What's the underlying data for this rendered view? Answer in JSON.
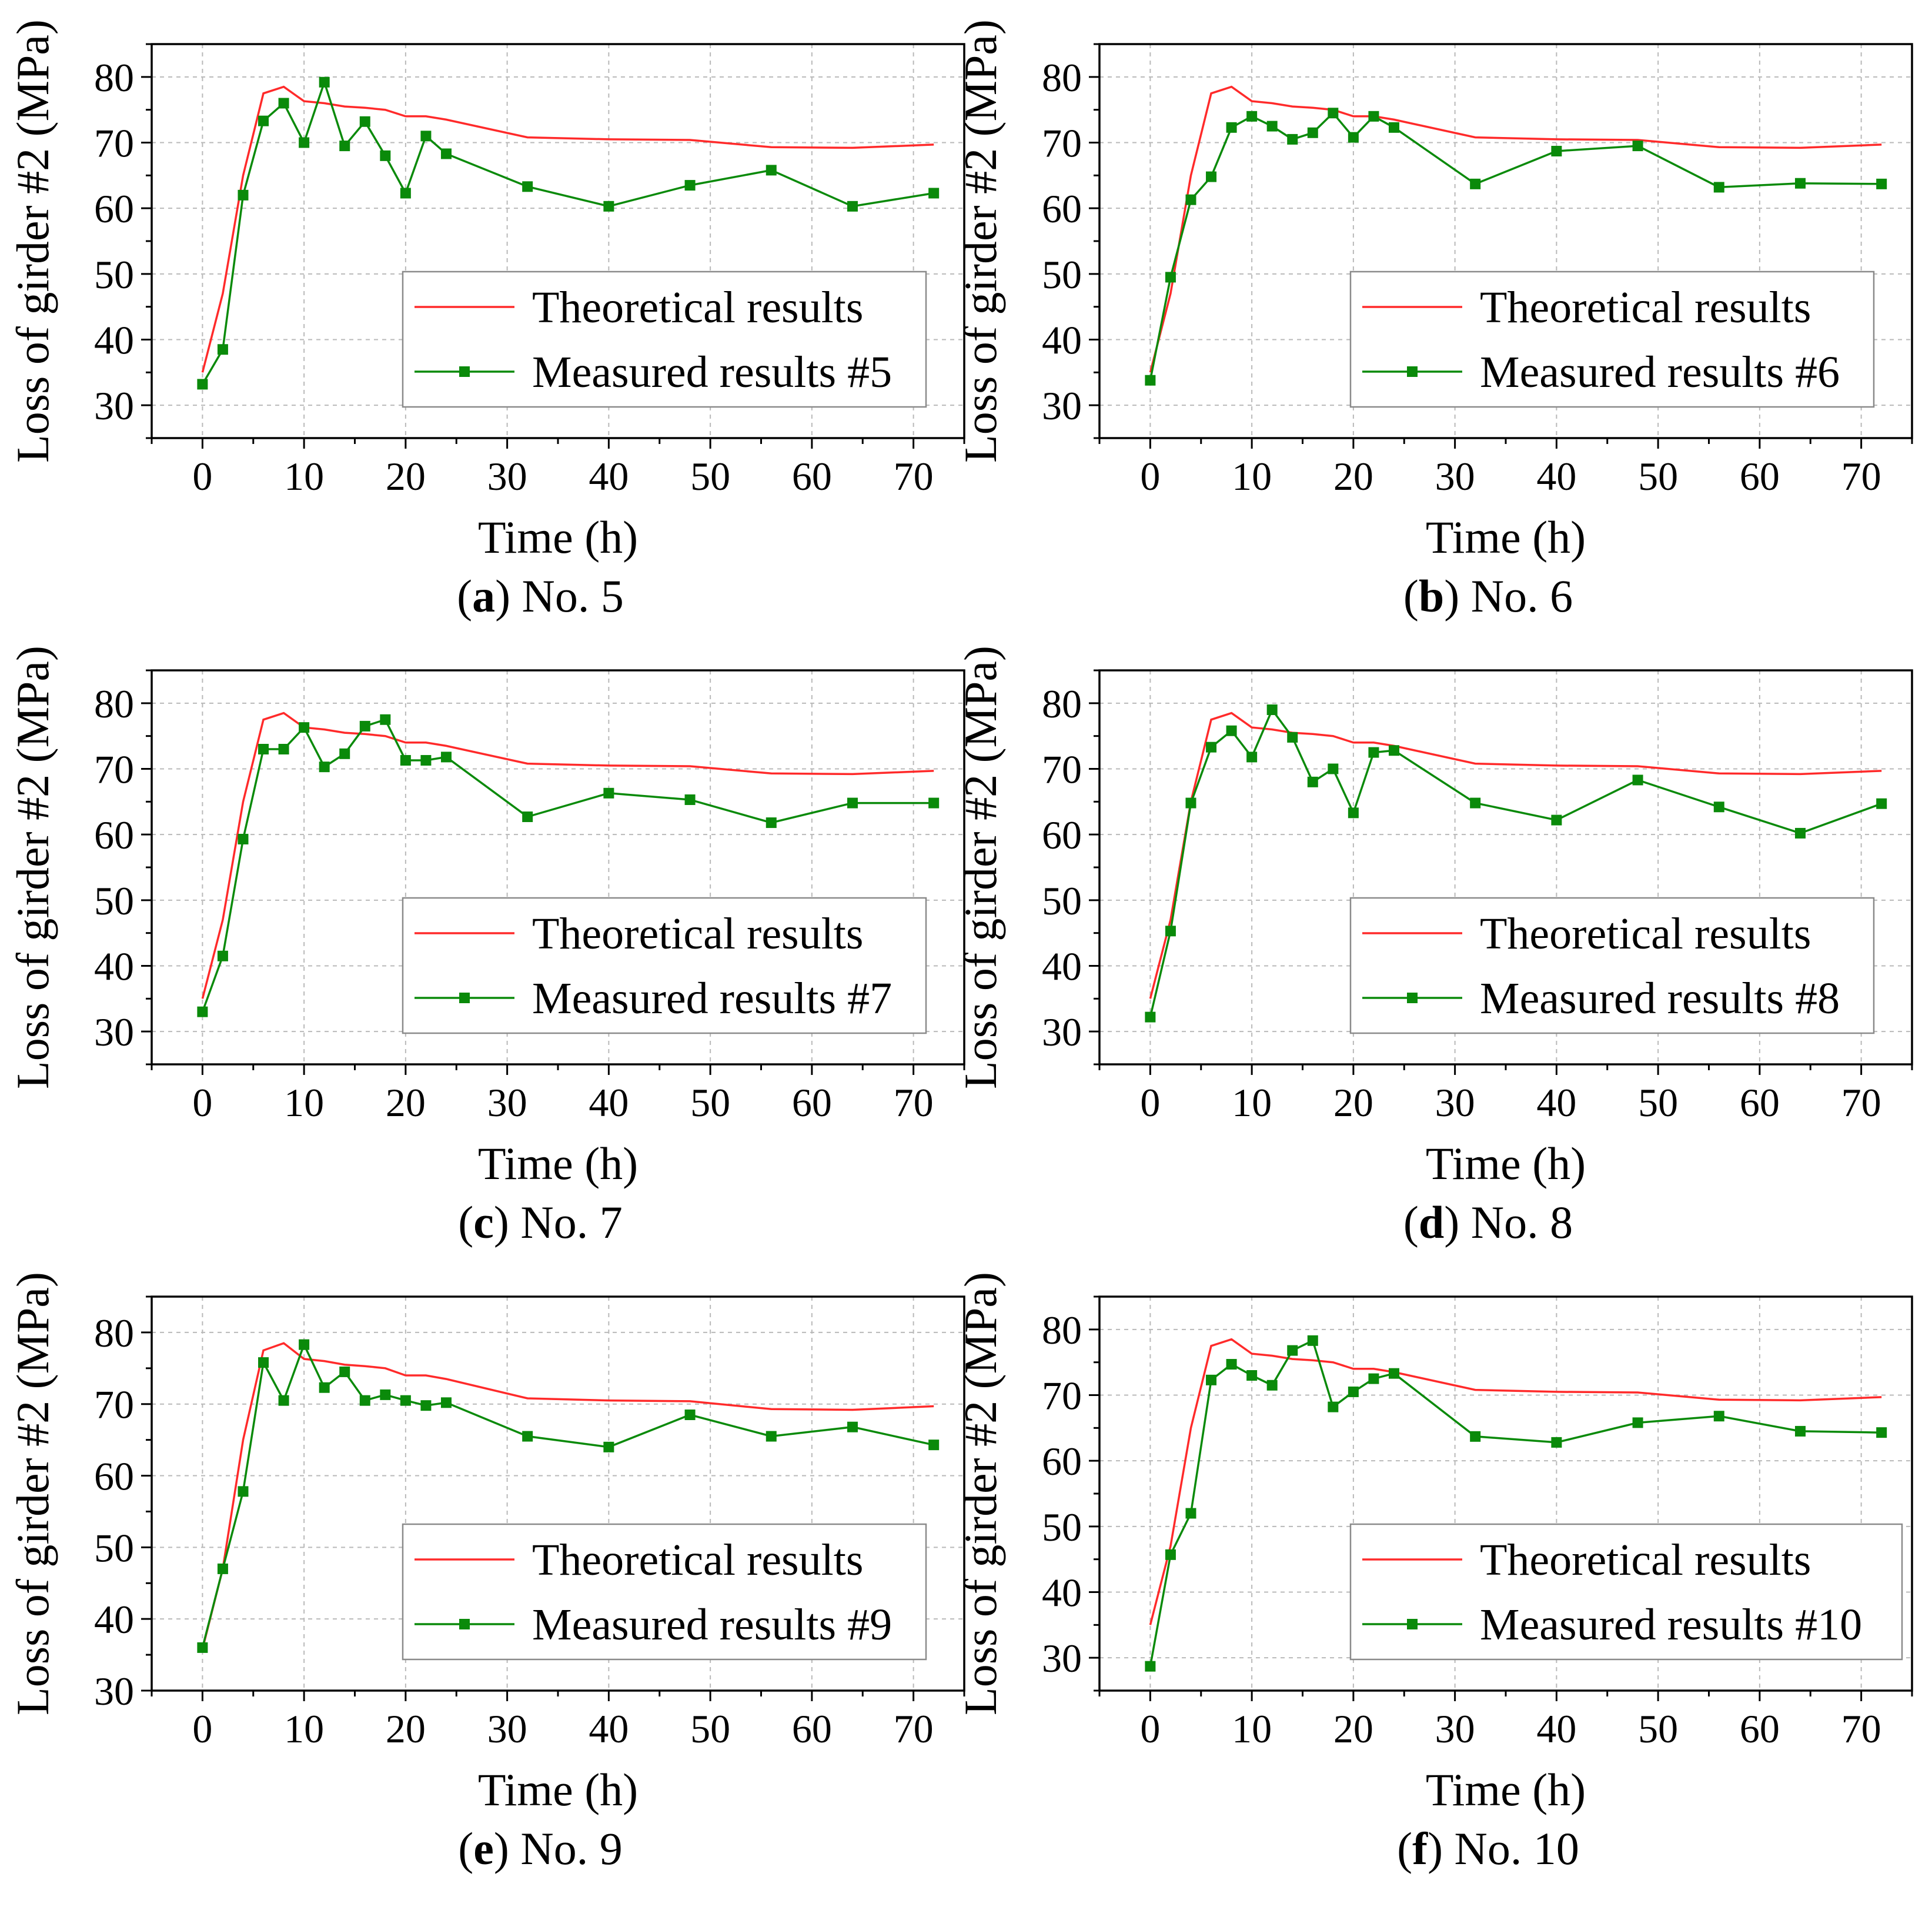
{
  "colors": {
    "theoretical": "#ff2a2a",
    "measured": "#0a8a0a",
    "grid": "#b9b9b9"
  },
  "chart_data": [
    {
      "type": "line",
      "caption_letter": "a",
      "caption_text": "No. 5",
      "xlabel": "Time (h)",
      "ylabel": "Loss of girder #2 (MPa)",
      "xlim": [
        -5,
        75
      ],
      "ylim": [
        25,
        85
      ],
      "xticks": [
        0,
        10,
        20,
        30,
        40,
        50,
        60,
        70
      ],
      "yticks": [
        30,
        40,
        50,
        60,
        70,
        80
      ],
      "grid": true,
      "legend_position": "lower-right",
      "series": [
        {
          "name": "Theoretical results",
          "marker": "none",
          "x": [
            0,
            2,
            4,
            6,
            8,
            10,
            12,
            14,
            16,
            18,
            20,
            22,
            24,
            32,
            40,
            48,
            56,
            64,
            72
          ],
          "y": [
            35,
            47,
            65,
            77.5,
            78.5,
            76.3,
            76,
            75.5,
            75.3,
            75,
            74,
            74,
            73.5,
            70.8,
            70.5,
            70.4,
            69.3,
            69.2,
            69.7
          ]
        },
        {
          "name": "Measured results #5",
          "marker": "square",
          "x": [
            0,
            2,
            4,
            6,
            8,
            10,
            12,
            14,
            16,
            18,
            20,
            22,
            24,
            32,
            40,
            48,
            56,
            64,
            72
          ],
          "y": [
            33.2,
            38.5,
            62,
            73.3,
            76,
            70,
            79.2,
            69.5,
            73.2,
            68,
            62.3,
            71,
            68.3,
            63.3,
            60.3,
            63.5,
            65.8,
            60.3,
            62.3
          ]
        }
      ]
    },
    {
      "type": "line",
      "caption_letter": "b",
      "caption_text": "No. 6",
      "xlabel": "Time (h)",
      "ylabel": "Loss of girder #2 (MPa)",
      "xlim": [
        -5,
        75
      ],
      "ylim": [
        25,
        85
      ],
      "xticks": [
        0,
        10,
        20,
        30,
        40,
        50,
        60,
        70
      ],
      "yticks": [
        30,
        40,
        50,
        60,
        70,
        80
      ],
      "grid": true,
      "legend_position": "lower-right",
      "series": [
        {
          "name": "Theoretical results",
          "marker": "none",
          "x": [
            0,
            2,
            4,
            6,
            8,
            10,
            12,
            14,
            16,
            18,
            20,
            22,
            24,
            32,
            40,
            48,
            56,
            64,
            72
          ],
          "y": [
            35,
            47,
            65,
            77.5,
            78.5,
            76.3,
            76,
            75.5,
            75.3,
            75,
            74,
            74,
            73.5,
            70.8,
            70.5,
            70.4,
            69.3,
            69.2,
            69.7
          ]
        },
        {
          "name": "Measured results #6",
          "marker": "square",
          "x": [
            0,
            2,
            4,
            6,
            8,
            10,
            12,
            14,
            16,
            18,
            20,
            22,
            24,
            32,
            40,
            48,
            56,
            64,
            72
          ],
          "y": [
            33.8,
            49.5,
            61.3,
            64.8,
            72.3,
            74,
            72.5,
            70.5,
            71.5,
            74.5,
            70.8,
            74,
            72.3,
            63.7,
            68.7,
            69.5,
            63.2,
            63.8,
            63.7
          ]
        }
      ]
    },
    {
      "type": "line",
      "caption_letter": "c",
      "caption_text": "No. 7",
      "xlabel": "Time (h)",
      "ylabel": "Loss of girder #2 (MPa)",
      "xlim": [
        -5,
        75
      ],
      "ylim": [
        25,
        85
      ],
      "xticks": [
        0,
        10,
        20,
        30,
        40,
        50,
        60,
        70
      ],
      "yticks": [
        30,
        40,
        50,
        60,
        70,
        80
      ],
      "grid": true,
      "legend_position": "lower-right",
      "series": [
        {
          "name": "Theoretical results",
          "marker": "none",
          "x": [
            0,
            2,
            4,
            6,
            8,
            10,
            12,
            14,
            16,
            18,
            20,
            22,
            24,
            32,
            40,
            48,
            56,
            64,
            72
          ],
          "y": [
            35,
            47,
            65,
            77.5,
            78.5,
            76.3,
            76,
            75.5,
            75.3,
            75,
            74,
            74,
            73.5,
            70.8,
            70.5,
            70.4,
            69.3,
            69.2,
            69.7
          ]
        },
        {
          "name": "Measured results #7",
          "marker": "square",
          "x": [
            0,
            2,
            4,
            6,
            8,
            10,
            12,
            14,
            16,
            18,
            20,
            22,
            24,
            32,
            40,
            48,
            56,
            64,
            72
          ],
          "y": [
            33,
            41.5,
            59.3,
            73,
            73,
            76.3,
            70.3,
            72.3,
            76.5,
            77.5,
            71.3,
            71.3,
            71.8,
            62.7,
            66.3,
            65.3,
            61.8,
            64.8,
            64.8
          ]
        }
      ]
    },
    {
      "type": "line",
      "caption_letter": "d",
      "caption_text": "No. 8",
      "xlabel": "Time (h)",
      "ylabel": "Loss of girder #2 (MPa)",
      "xlim": [
        -5,
        75
      ],
      "ylim": [
        25,
        85
      ],
      "xticks": [
        0,
        10,
        20,
        30,
        40,
        50,
        60,
        70
      ],
      "yticks": [
        30,
        40,
        50,
        60,
        70,
        80
      ],
      "grid": true,
      "legend_position": "lower-right",
      "series": [
        {
          "name": "Theoretical results",
          "marker": "none",
          "x": [
            0,
            2,
            4,
            6,
            8,
            10,
            12,
            14,
            16,
            18,
            20,
            22,
            24,
            32,
            40,
            48,
            56,
            64,
            72
          ],
          "y": [
            35,
            47,
            65,
            77.5,
            78.5,
            76.3,
            76,
            75.5,
            75.3,
            75,
            74,
            74,
            73.5,
            70.8,
            70.5,
            70.4,
            69.3,
            69.2,
            69.7
          ]
        },
        {
          "name": "Measured results #8",
          "marker": "square",
          "x": [
            0,
            2,
            4,
            6,
            8,
            10,
            12,
            14,
            16,
            18,
            20,
            22,
            24,
            32,
            40,
            48,
            56,
            64,
            72
          ],
          "y": [
            32.2,
            45.3,
            64.8,
            73.3,
            75.8,
            71.8,
            79,
            74.8,
            68,
            70,
            63.3,
            72.5,
            72.8,
            64.8,
            62.2,
            68.3,
            64.2,
            60.2,
            64.7
          ]
        }
      ]
    },
    {
      "type": "line",
      "caption_letter": "e",
      "caption_text": "No. 9",
      "xlabel": "Time (h)",
      "ylabel": "Loss of girder #2 (MPa)",
      "xlim": [
        -5,
        75
      ],
      "ylim": [
        30,
        85
      ],
      "xticks": [
        0,
        10,
        20,
        30,
        40,
        50,
        60,
        70
      ],
      "yticks": [
        30,
        40,
        50,
        60,
        70,
        80
      ],
      "grid": true,
      "legend_position": "lower-right",
      "series": [
        {
          "name": "Theoretical results",
          "marker": "none",
          "x": [
            0,
            2,
            4,
            6,
            8,
            10,
            12,
            14,
            16,
            18,
            20,
            22,
            24,
            32,
            40,
            48,
            56,
            64,
            72
          ],
          "y": [
            35.8,
            47,
            65,
            77.5,
            78.5,
            76.3,
            76,
            75.5,
            75.3,
            75,
            74,
            74,
            73.5,
            70.8,
            70.5,
            70.4,
            69.3,
            69.2,
            69.7
          ]
        },
        {
          "name": "Measured results #9",
          "marker": "square",
          "x": [
            0,
            2,
            4,
            6,
            8,
            10,
            12,
            14,
            16,
            18,
            20,
            22,
            24,
            32,
            40,
            48,
            56,
            64,
            72
          ],
          "y": [
            36,
            47,
            57.8,
            75.8,
            70.5,
            78.3,
            72.3,
            74.5,
            70.5,
            71.3,
            70.5,
            69.8,
            70.2,
            65.5,
            64,
            68.5,
            65.5,
            66.8,
            64.3
          ]
        }
      ]
    },
    {
      "type": "line",
      "caption_letter": "f",
      "caption_text": "No. 10",
      "xlabel": "Time (h)",
      "ylabel": "Loss of girder #2 (MPa)",
      "xlim": [
        -5,
        75
      ],
      "ylim": [
        25,
        85
      ],
      "xticks": [
        0,
        10,
        20,
        30,
        40,
        50,
        60,
        70
      ],
      "yticks": [
        30,
        40,
        50,
        60,
        70,
        80
      ],
      "grid": true,
      "legend_position": "lower-right",
      "series": [
        {
          "name": "Theoretical results",
          "marker": "none",
          "x": [
            0,
            2,
            4,
            6,
            8,
            10,
            12,
            14,
            16,
            18,
            20,
            22,
            24,
            32,
            40,
            48,
            56,
            64,
            72
          ],
          "y": [
            35,
            47,
            65,
            77.5,
            78.5,
            76.3,
            76,
            75.5,
            75.3,
            75,
            74,
            74,
            73.5,
            70.8,
            70.5,
            70.4,
            69.3,
            69.2,
            69.7
          ]
        },
        {
          "name": "Measured results #10",
          "marker": "square",
          "x": [
            0,
            2,
            4,
            6,
            8,
            10,
            12,
            14,
            16,
            18,
            20,
            22,
            24,
            32,
            40,
            48,
            56,
            64,
            72
          ],
          "y": [
            28.7,
            45.7,
            52,
            72.3,
            74.7,
            73,
            71.5,
            76.8,
            78.3,
            68.2,
            70.5,
            72.5,
            73.3,
            63.7,
            62.8,
            65.8,
            66.8,
            64.5,
            64.3
          ]
        }
      ]
    }
  ]
}
